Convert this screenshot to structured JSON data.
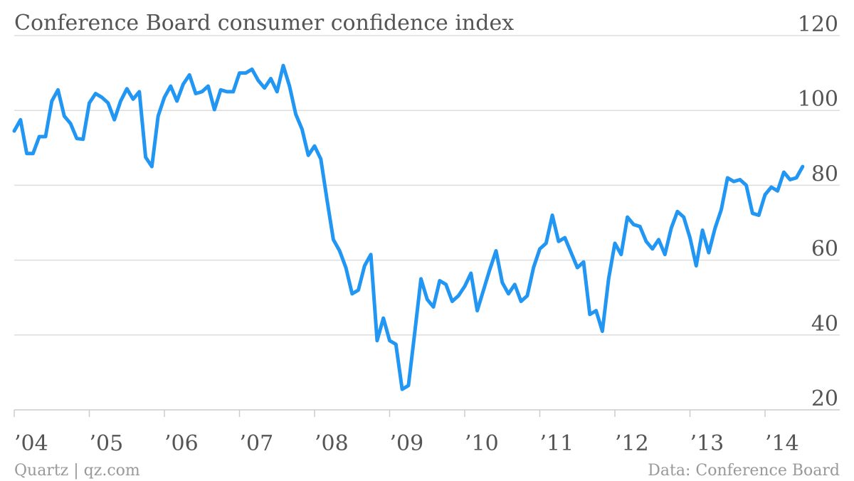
{
  "chart_data": {
    "type": "line",
    "title": "Conference Board consumer confidence index",
    "xlabel": "",
    "ylabel": "",
    "ylim": [
      20,
      120
    ],
    "yticks": [
      "20",
      "40",
      "60",
      "80",
      "100",
      "120"
    ],
    "y_axis_side": "right",
    "x_start": "2004-01",
    "x_frequency": "monthly",
    "xticks": [
      "’04",
      "’05",
      "’06",
      "’07",
      "’08",
      "’09",
      "’10",
      "’11",
      "’12",
      "’13",
      "’14"
    ],
    "grid": true,
    "legend": "none",
    "series": [
      {
        "color": "#2196f3",
        "values": [
          94.5,
          97.5,
          88.5,
          88.5,
          93.0,
          93.0,
          102.5,
          105.5,
          98.5,
          96.5,
          92.5,
          92.3,
          102.0,
          104.5,
          103.5,
          102.0,
          97.5,
          102.5,
          105.8,
          103.0,
          105.0,
          87.5,
          85.0,
          98.5,
          103.5,
          106.5,
          102.5,
          107.0,
          109.5,
          104.5,
          105.0,
          106.5,
          100.2,
          105.5,
          105.0,
          105.0,
          110.0,
          110.0,
          111.0,
          108.0,
          106.0,
          108.5,
          105.0,
          112.0,
          106.5,
          99.0,
          95.0,
          88.0,
          90.5,
          87.0,
          76.0,
          65.5,
          62.5,
          58.0,
          51.0,
          52.0,
          58.5,
          61.5,
          38.5,
          44.5,
          38.5,
          37.5,
          25.5,
          26.5,
          40.5,
          55.0,
          49.5,
          47.5,
          54.5,
          53.5,
          49.0,
          50.5,
          53.0,
          56.5,
          46.5,
          52.0,
          57.5,
          62.5,
          54.0,
          51.0,
          53.5,
          49.0,
          50.5,
          58.0,
          63.0,
          64.5,
          72.0,
          65.0,
          66.0,
          62.0,
          58.0,
          59.5,
          45.5,
          46.5,
          41.0,
          55.0,
          64.5,
          61.5,
          71.5,
          69.5,
          69.0,
          65.0,
          63.0,
          65.5,
          61.5,
          68.5,
          73.0,
          71.5,
          66.0,
          58.5,
          68.0,
          62.0,
          68.5,
          73.5,
          82.0,
          81.0,
          81.5,
          80.0,
          72.5,
          72.0,
          77.5,
          79.5,
          78.5,
          83.5,
          81.5,
          82.0,
          85.0
        ]
      }
    ]
  },
  "footer": {
    "source_left": "Quartz | qz.com",
    "source_right": "Data: Conference Board"
  },
  "colors": {
    "line": "#2196f3",
    "text": "#555555",
    "footer": "#999999",
    "grid": "#dddddd"
  }
}
